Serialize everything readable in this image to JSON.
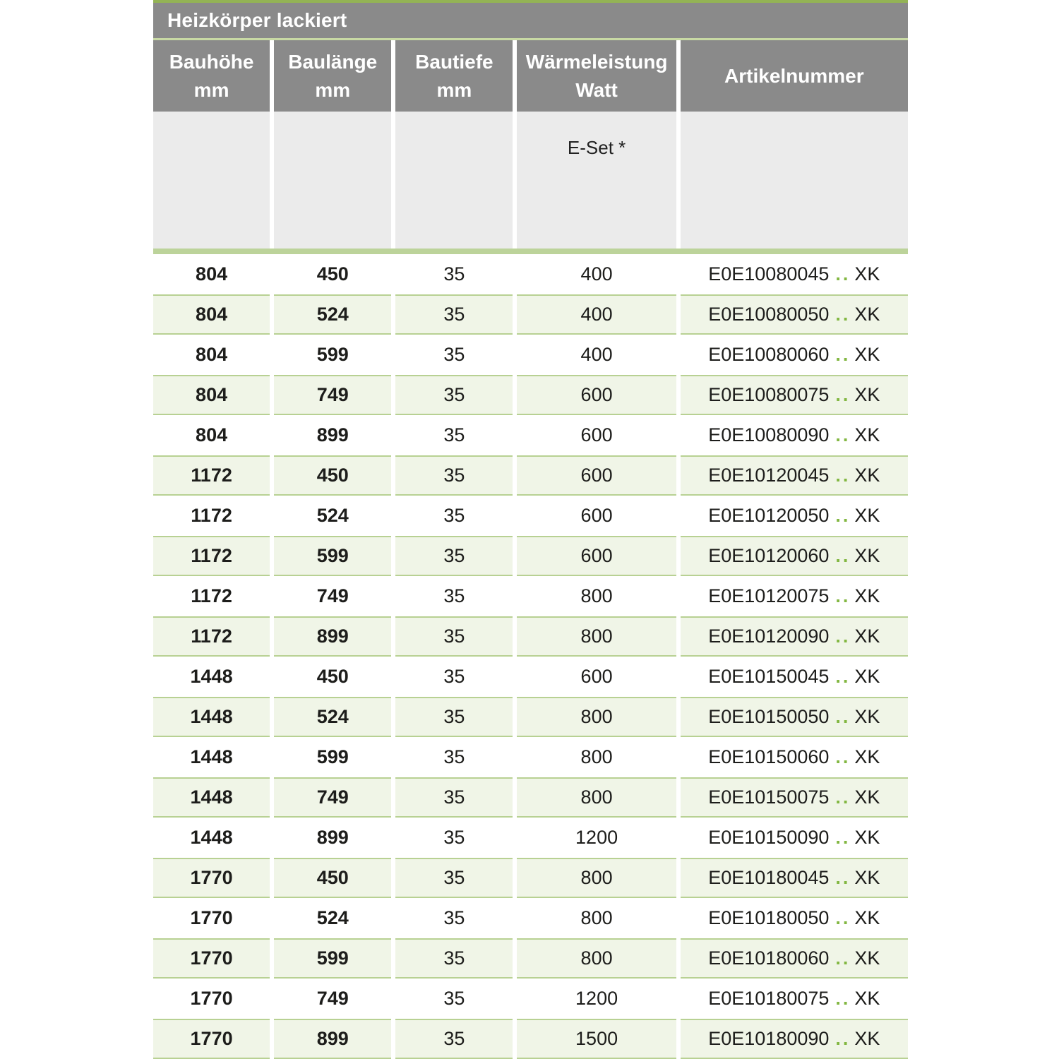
{
  "table": {
    "title": "Heizkörper lackiert",
    "columns": [
      {
        "line1": "Bauhöhe",
        "line2": "mm"
      },
      {
        "line1": "Baulänge",
        "line2": "mm"
      },
      {
        "line1": "Bautiefe",
        "line2": "mm"
      },
      {
        "line1": "Wärmeleistung",
        "line2": "Watt"
      },
      {
        "line1": "Artikelnummer",
        "line2": ""
      }
    ],
    "subheader": {
      "eset_label": "E-Set *"
    },
    "rows": [
      {
        "bauhoehe": "804",
        "baulaenge": "450",
        "bautiefe": "35",
        "watt": "400",
        "artikelnummer": {
          "code": "E0E10080045",
          "dots": "..",
          "suffix": "XK"
        }
      },
      {
        "bauhoehe": "804",
        "baulaenge": "524",
        "bautiefe": "35",
        "watt": "400",
        "artikelnummer": {
          "code": "E0E10080050",
          "dots": "..",
          "suffix": "XK"
        }
      },
      {
        "bauhoehe": "804",
        "baulaenge": "599",
        "bautiefe": "35",
        "watt": "400",
        "artikelnummer": {
          "code": "E0E10080060",
          "dots": "..",
          "suffix": "XK"
        }
      },
      {
        "bauhoehe": "804",
        "baulaenge": "749",
        "bautiefe": "35",
        "watt": "600",
        "artikelnummer": {
          "code": "E0E10080075",
          "dots": "..",
          "suffix": "XK"
        }
      },
      {
        "bauhoehe": "804",
        "baulaenge": "899",
        "bautiefe": "35",
        "watt": "600",
        "artikelnummer": {
          "code": "E0E10080090",
          "dots": "..",
          "suffix": "XK"
        }
      },
      {
        "bauhoehe": "1172",
        "baulaenge": "450",
        "bautiefe": "35",
        "watt": "600",
        "artikelnummer": {
          "code": "E0E10120045",
          "dots": "..",
          "suffix": "XK"
        }
      },
      {
        "bauhoehe": "1172",
        "baulaenge": "524",
        "bautiefe": "35",
        "watt": "600",
        "artikelnummer": {
          "code": "E0E10120050",
          "dots": "..",
          "suffix": "XK"
        }
      },
      {
        "bauhoehe": "1172",
        "baulaenge": "599",
        "bautiefe": "35",
        "watt": "600",
        "artikelnummer": {
          "code": "E0E10120060",
          "dots": "..",
          "suffix": "XK"
        }
      },
      {
        "bauhoehe": "1172",
        "baulaenge": "749",
        "bautiefe": "35",
        "watt": "800",
        "artikelnummer": {
          "code": "E0E10120075",
          "dots": "..",
          "suffix": "XK"
        }
      },
      {
        "bauhoehe": "1172",
        "baulaenge": "899",
        "bautiefe": "35",
        "watt": "800",
        "artikelnummer": {
          "code": "E0E10120090",
          "dots": "..",
          "suffix": "XK"
        }
      },
      {
        "bauhoehe": "1448",
        "baulaenge": "450",
        "bautiefe": "35",
        "watt": "600",
        "artikelnummer": {
          "code": "E0E10150045",
          "dots": "..",
          "suffix": "XK"
        }
      },
      {
        "bauhoehe": "1448",
        "baulaenge": "524",
        "bautiefe": "35",
        "watt": "800",
        "artikelnummer": {
          "code": "E0E10150050",
          "dots": "..",
          "suffix": "XK"
        }
      },
      {
        "bauhoehe": "1448",
        "baulaenge": "599",
        "bautiefe": "35",
        "watt": "800",
        "artikelnummer": {
          "code": "E0E10150060",
          "dots": "..",
          "suffix": "XK"
        }
      },
      {
        "bauhoehe": "1448",
        "baulaenge": "749",
        "bautiefe": "35",
        "watt": "800",
        "artikelnummer": {
          "code": "E0E10150075",
          "dots": "..",
          "suffix": "XK"
        }
      },
      {
        "bauhoehe": "1448",
        "baulaenge": "899",
        "bautiefe": "35",
        "watt": "1200",
        "artikelnummer": {
          "code": "E0E10150090",
          "dots": "..",
          "suffix": "XK"
        }
      },
      {
        "bauhoehe": "1770",
        "baulaenge": "450",
        "bautiefe": "35",
        "watt": "800",
        "artikelnummer": {
          "code": "E0E10180045",
          "dots": "..",
          "suffix": "XK"
        }
      },
      {
        "bauhoehe": "1770",
        "baulaenge": "524",
        "bautiefe": "35",
        "watt": "800",
        "artikelnummer": {
          "code": "E0E10180050",
          "dots": "..",
          "suffix": "XK"
        }
      },
      {
        "bauhoehe": "1770",
        "baulaenge": "599",
        "bautiefe": "35",
        "watt": "800",
        "artikelnummer": {
          "code": "E0E10180060",
          "dots": "..",
          "suffix": "XK"
        }
      },
      {
        "bauhoehe": "1770",
        "baulaenge": "749",
        "bautiefe": "35",
        "watt": "1200",
        "artikelnummer": {
          "code": "E0E10180075",
          "dots": "..",
          "suffix": "XK"
        }
      },
      {
        "bauhoehe": "1770",
        "baulaenge": "899",
        "bautiefe": "35",
        "watt": "1500",
        "artikelnummer": {
          "code": "E0E10180090",
          "dots": "..",
          "suffix": "XK"
        }
      }
    ]
  },
  "colors": {
    "header_gray": "#8a8a8a",
    "subheader_gray": "#ebebeb",
    "top_line_green": "#93b355",
    "separator_green": "#c8d9a4",
    "accent_bar_green": "#bcd39a",
    "row_green_bg": "#f0f5e7",
    "row_green_border": "#b8d193",
    "dots_green": "#82b741",
    "text_dark": "#1d1d1b"
  }
}
